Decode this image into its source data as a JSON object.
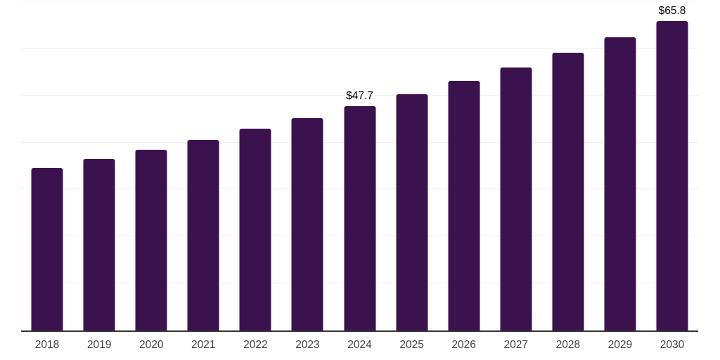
{
  "chart_data": {
    "type": "bar",
    "title": "",
    "xlabel": "",
    "ylabel": "",
    "categories": [
      "2018",
      "2019",
      "2020",
      "2021",
      "2022",
      "2023",
      "2024",
      "2025",
      "2026",
      "2027",
      "2028",
      "2029",
      "2030"
    ],
    "values": [
      34.6,
      36.5,
      38.5,
      40.6,
      42.9,
      45.2,
      47.7,
      50.3,
      53.1,
      56.0,
      59.1,
      62.3,
      65.8
    ],
    "annotations": [
      {
        "category": "2024",
        "text": "$47.7"
      },
      {
        "category": "2030",
        "text": "$65.8"
      }
    ],
    "ylim": [
      0,
      70
    ],
    "gridline_interval": 10,
    "grid": true,
    "y_tick_labels_visible": false,
    "legend": "none"
  },
  "colors": {
    "bar": "#3B124E",
    "gridline": "#EEEEEE",
    "axis_line": "#333333",
    "tick_label": "#404040",
    "data_label": "#000000",
    "background": "#FFFFFF"
  }
}
